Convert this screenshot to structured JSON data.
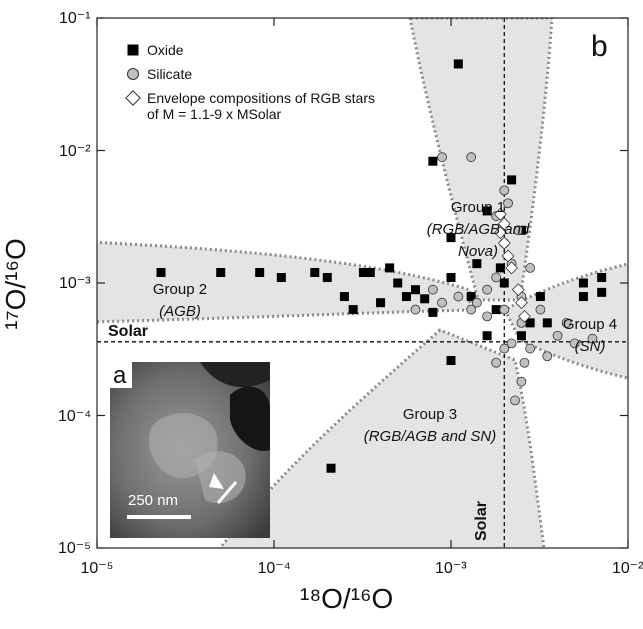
{
  "chart_data": {
    "type": "scatter",
    "panel_label": "b",
    "inset": {
      "label": "a",
      "scale_bar": "250 nm"
    },
    "x_label": "¹⁸O/¹⁶O",
    "y_label": "¹⁷O/¹⁶O",
    "xlim": [
      1e-05,
      0.01
    ],
    "ylim": [
      1e-05,
      0.1
    ],
    "log_x": true,
    "log_y": true,
    "xticks": [
      {
        "value": 1e-05,
        "label": "10⁻⁵"
      },
      {
        "value": 0.0001,
        "label": "10⁻⁴"
      },
      {
        "value": 0.001,
        "label": "10⁻³"
      },
      {
        "value": 0.01,
        "label": "10⁻²"
      }
    ],
    "yticks": [
      {
        "value": 1e-05,
        "label": "10⁻⁵"
      },
      {
        "value": 0.0001,
        "label": "10⁻⁴"
      },
      {
        "value": 0.001,
        "label": "10⁻³"
      },
      {
        "value": 0.01,
        "label": "10⁻²"
      },
      {
        "value": 0.1,
        "label": "10⁻¹"
      }
    ],
    "reference": {
      "label": "Solar",
      "x": 0.002,
      "y": 0.00036
    },
    "annotations": [
      {
        "title": "Group 1",
        "note": "(RGB/AGB and Nova)"
      },
      {
        "title": "Group 2",
        "note": "(AGB)"
      },
      {
        "title": "Group 3",
        "note": "(RGB/AGB and SN)"
      },
      {
        "title": "Group 4",
        "note": "(SN)"
      }
    ],
    "legend_position": "upper left",
    "series": [
      {
        "name": "Oxide",
        "color": "#000000",
        "marker": "square",
        "x": [
          2.3e-05,
          5e-05,
          8.3e-05,
          0.00011,
          0.00017,
          0.0002,
          0.00032,
          0.00035,
          0.00045,
          0.0005,
          0.00063,
          0.00025,
          0.00028,
          0.0004,
          0.00056,
          0.00071,
          0.00079,
          0.001,
          0.0011,
          0.00079,
          0.001,
          0.0016,
          0.0022,
          0.0025,
          0.002,
          0.0018,
          0.0016,
          0.001,
          0.0025,
          0.0028,
          0.0013,
          0.0014,
          0.0035,
          0.0032,
          0.0071,
          0.0056,
          0.0056,
          0.0071,
          0.00021,
          0.0019
        ],
        "values": [
          0.0012,
          0.0012,
          0.0012,
          0.0011,
          0.0012,
          0.0011,
          0.0012,
          0.0012,
          0.0013,
          0.001,
          0.00089,
          0.00079,
          0.00063,
          0.00071,
          0.00079,
          0.00076,
          0.0006,
          0.0011,
          0.045,
          0.0083,
          0.0022,
          0.0035,
          0.006,
          0.0025,
          0.001,
          0.00063,
          0.0004,
          0.00026,
          0.0004,
          0.0005,
          0.00079,
          0.0014,
          0.0005,
          0.00079,
          0.0011,
          0.001,
          0.00079,
          0.00085,
          4e-05,
          0.0013
        ]
      },
      {
        "name": "Silicate",
        "color": "#c0c0c0",
        "marker": "circle",
        "x": [
          0.00089,
          0.0013,
          0.002,
          0.0018,
          0.002,
          0.0022,
          0.0018,
          0.0016,
          0.0014,
          0.0013,
          0.0011,
          0.00089,
          0.002,
          0.0025,
          0.0022,
          0.0028,
          0.002,
          0.004,
          0.005,
          0.0063,
          0.0045,
          0.0025,
          0.0024,
          0.0021,
          0.0026,
          0.0025,
          0.0023,
          0.0016,
          0.0032,
          0.0035,
          0.0018,
          0.0028,
          0.00063,
          0.00079
        ],
        "values": [
          0.0089,
          0.0089,
          0.005,
          0.0032,
          0.002,
          0.0014,
          0.0011,
          0.00089,
          0.00071,
          0.00063,
          0.00079,
          0.00071,
          0.00063,
          0.0005,
          0.00035,
          0.00032,
          0.00032,
          0.0004,
          0.00035,
          0.00038,
          0.0005,
          0.00079,
          0.0025,
          0.004,
          0.00025,
          0.00018,
          0.00013,
          0.00056,
          0.00063,
          0.00028,
          0.00025,
          0.0013,
          0.00063,
          0.00089
        ]
      },
      {
        "name": "Envelope compositions of RGB stars of M = 1.1-9 x MSolar",
        "color": "#ffffff",
        "marker": "diamond",
        "x": [
          0.0019,
          0.002,
          0.0019,
          0.002,
          0.0021,
          0.0022,
          0.0024,
          0.0025,
          0.0026
        ],
        "values": [
          0.0033,
          0.0028,
          0.0024,
          0.002,
          0.0016,
          0.0013,
          0.00089,
          0.00071,
          0.00056
        ]
      }
    ]
  }
}
